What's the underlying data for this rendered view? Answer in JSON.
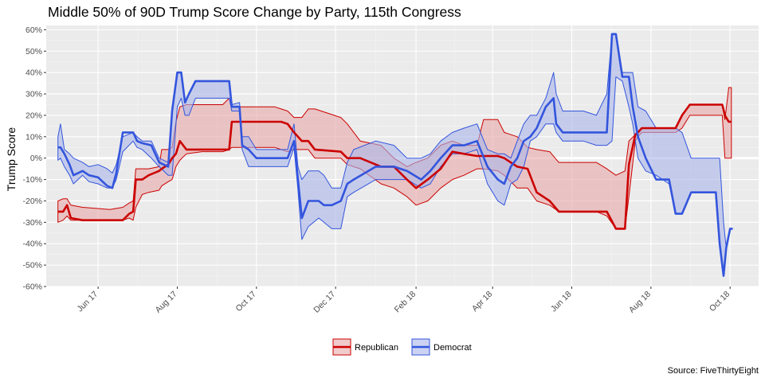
{
  "chart_data": {
    "type": "area",
    "title": "Middle 50% of 90D Trump Score Change by Party, 115th Congress",
    "xlabel": "",
    "ylabel": "Trump Score",
    "source": "Source: FiveThirtyEight",
    "y_range": [
      -60,
      62
    ],
    "y_ticks": [
      -60,
      -50,
      -40,
      -30,
      -20,
      -10,
      0,
      10,
      20,
      30,
      40,
      50,
      60
    ],
    "y_tick_labels": [
      "-60%",
      "-50%",
      "-40%",
      "-30%",
      "-20%",
      "-10%",
      "0%",
      "10%",
      "20%",
      "30%",
      "40%",
      "50%",
      "60%"
    ],
    "x_range": [
      "2017-04-22",
      "2018-10-23"
    ],
    "x_ticks": [
      {
        "date": "2017-06-01",
        "label": "Jun 17"
      },
      {
        "date": "2017-08-01",
        "label": "Aug 17"
      },
      {
        "date": "2017-10-01",
        "label": "Oct 17"
      },
      {
        "date": "2017-12-01",
        "label": "Dec 17"
      },
      {
        "date": "2018-02-01",
        "label": "Feb 18"
      },
      {
        "date": "2018-04-01",
        "label": "Apr 18"
      },
      {
        "date": "2018-06-01",
        "label": "Jun 18"
      },
      {
        "date": "2018-08-01",
        "label": "Aug 18"
      },
      {
        "date": "2018-10-01",
        "label": "Oct 18"
      }
    ],
    "grid": true,
    "legend_position": "bottom",
    "series": [
      {
        "name": "Republican",
        "color": "#cc0000",
        "fill": "#e8a8a8",
        "points": [
          [
            "2017-05-01",
            -20,
            -30,
            -25
          ],
          [
            "2017-05-05",
            -19,
            -29,
            -25
          ],
          [
            "2017-05-08",
            -19,
            -27,
            -22
          ],
          [
            "2017-05-11",
            -22,
            -29,
            -28
          ],
          [
            "2017-05-20",
            -23,
            -29,
            -29
          ],
          [
            "2017-06-10",
            -24,
            -29,
            -29
          ],
          [
            "2017-06-20",
            -23,
            -29,
            -29
          ],
          [
            "2017-06-25",
            -21,
            -28,
            -26
          ],
          [
            "2017-06-28",
            -20,
            -29,
            -25
          ],
          [
            "2017-06-30",
            -5,
            -23,
            -10
          ],
          [
            "2017-07-05",
            -5,
            -17,
            -10
          ],
          [
            "2017-07-10",
            -5,
            -16,
            -8
          ],
          [
            "2017-07-18",
            -4,
            -15,
            -6
          ],
          [
            "2017-07-20",
            4,
            -13,
            -5
          ],
          [
            "2017-07-25",
            4,
            -11,
            -3
          ],
          [
            "2017-07-28",
            5,
            -10,
            0
          ],
          [
            "2017-07-31",
            17,
            -4,
            2
          ],
          [
            "2017-08-03",
            24,
            -1,
            8
          ],
          [
            "2017-08-08",
            25,
            2,
            4
          ],
          [
            "2017-08-20",
            25,
            3,
            4
          ],
          [
            "2017-09-05",
            25,
            3,
            4
          ],
          [
            "2017-09-10",
            28,
            4,
            4
          ],
          [
            "2017-09-12",
            24,
            5,
            17
          ],
          [
            "2017-10-15",
            24,
            5,
            17
          ],
          [
            "2017-10-20",
            23,
            4,
            17
          ],
          [
            "2017-10-25",
            22,
            3,
            16
          ],
          [
            "2017-10-30",
            19,
            4,
            12
          ],
          [
            "2017-11-05",
            19,
            4,
            8
          ],
          [
            "2017-11-10",
            23,
            4,
            8
          ],
          [
            "2017-11-15",
            23,
            0,
            4
          ],
          [
            "2017-12-05",
            19,
            0,
            3
          ],
          [
            "2017-12-10",
            16,
            -3,
            0
          ],
          [
            "2017-12-20",
            8,
            -5,
            0
          ],
          [
            "2018-01-05",
            6,
            -12,
            -4
          ],
          [
            "2018-01-15",
            0,
            -14,
            -4
          ],
          [
            "2018-01-25",
            -4,
            -18,
            -10
          ],
          [
            "2018-02-01",
            -2,
            -22,
            -14
          ],
          [
            "2018-02-10",
            0,
            -20,
            -10
          ],
          [
            "2018-02-20",
            6,
            -14,
            -5
          ],
          [
            "2018-03-01",
            8,
            -10,
            3
          ],
          [
            "2018-03-10",
            6,
            -8,
            2
          ],
          [
            "2018-03-20",
            6,
            -5,
            1
          ],
          [
            "2018-03-25",
            18,
            -5,
            1
          ],
          [
            "2018-04-05",
            18,
            -6,
            1
          ],
          [
            "2018-04-10",
            12,
            -8,
            0
          ],
          [
            "2018-04-20",
            10,
            -14,
            -4
          ],
          [
            "2018-04-28",
            5,
            -14,
            -5
          ],
          [
            "2018-05-05",
            4,
            -20,
            -16
          ],
          [
            "2018-05-15",
            3,
            -22,
            -20
          ],
          [
            "2018-05-22",
            -2,
            -25,
            -25
          ],
          [
            "2018-06-20",
            -2,
            -25,
            -25
          ],
          [
            "2018-06-28",
            -5,
            -27,
            -25
          ],
          [
            "2018-07-05",
            -8,
            -33,
            -33
          ],
          [
            "2018-07-12",
            -6,
            -33,
            -33
          ],
          [
            "2018-07-15",
            8,
            -18,
            -3
          ],
          [
            "2018-07-20",
            11,
            8,
            11
          ],
          [
            "2018-07-22",
            12,
            10,
            12
          ],
          [
            "2018-07-25",
            14,
            12,
            14
          ],
          [
            "2018-08-20",
            14,
            12,
            14
          ],
          [
            "2018-08-25",
            20,
            14,
            20
          ],
          [
            "2018-08-31",
            25,
            20,
            25
          ],
          [
            "2018-09-25",
            25,
            20,
            25
          ],
          [
            "2018-09-27",
            18,
            0,
            20
          ],
          [
            "2018-09-30",
            33,
            0,
            17
          ],
          [
            "2018-10-02",
            33,
            0,
            17
          ]
        ]
      },
      {
        "name": "Democrat",
        "color": "#3355dd",
        "fill": "#aab6ea",
        "points": [
          [
            "2017-05-01",
            10,
            -1,
            5
          ],
          [
            "2017-05-03",
            16,
            0,
            5
          ],
          [
            "2017-05-06",
            4,
            -4,
            2
          ],
          [
            "2017-05-10",
            2,
            -8,
            -3
          ],
          [
            "2017-05-13",
            0,
            -12,
            -8
          ],
          [
            "2017-05-20",
            -2,
            -8,
            -6
          ],
          [
            "2017-05-25",
            -4,
            -11,
            -8
          ],
          [
            "2017-06-01",
            -3,
            -12,
            -9
          ],
          [
            "2017-06-08",
            -5,
            -14,
            -13
          ],
          [
            "2017-06-12",
            -7,
            -14,
            -14
          ],
          [
            "2017-06-15",
            -3,
            -10,
            -7
          ],
          [
            "2017-06-20",
            10,
            3,
            12
          ],
          [
            "2017-06-28",
            12,
            8,
            12
          ],
          [
            "2017-07-01",
            10,
            5,
            8
          ],
          [
            "2017-07-05",
            8,
            4,
            7
          ],
          [
            "2017-07-12",
            8,
            0,
            6
          ],
          [
            "2017-07-18",
            0,
            -4,
            -2
          ],
          [
            "2017-07-25",
            -2,
            -8,
            -4
          ],
          [
            "2017-07-28",
            24,
            -8,
            22
          ],
          [
            "2017-08-01",
            40,
            24,
            40
          ],
          [
            "2017-08-04",
            40,
            28,
            40
          ],
          [
            "2017-08-07",
            26,
            20,
            26
          ],
          [
            "2017-08-10",
            30,
            20,
            30
          ],
          [
            "2017-08-15",
            36,
            28,
            36
          ],
          [
            "2017-09-10",
            36,
            28,
            36
          ],
          [
            "2017-09-12",
            25,
            22,
            24
          ],
          [
            "2017-09-18",
            26,
            22,
            24
          ],
          [
            "2017-09-20",
            10,
            4,
            6
          ],
          [
            "2017-09-25",
            10,
            -4,
            4
          ],
          [
            "2017-10-01",
            4,
            -4,
            0
          ],
          [
            "2017-10-25",
            4,
            -4,
            0
          ],
          [
            "2017-10-30",
            16,
            5,
            8
          ],
          [
            "2017-11-02",
            -4,
            -15,
            -10
          ],
          [
            "2017-11-05",
            -10,
            -38,
            -28
          ],
          [
            "2017-11-10",
            -6,
            -32,
            -20
          ],
          [
            "2017-11-18",
            -6,
            -28,
            -20
          ],
          [
            "2017-11-22",
            -8,
            -30,
            -22
          ],
          [
            "2017-11-28",
            -14,
            -33,
            -22
          ],
          [
            "2017-12-05",
            -14,
            -33,
            -20
          ],
          [
            "2017-12-10",
            -2,
            -18,
            -12
          ],
          [
            "2017-12-15",
            4,
            -16,
            -10
          ],
          [
            "2018-01-01",
            8,
            -10,
            -4
          ],
          [
            "2018-01-15",
            6,
            -10,
            -4
          ],
          [
            "2018-01-25",
            0,
            -10,
            -6
          ],
          [
            "2018-02-05",
            0,
            -14,
            -10
          ],
          [
            "2018-02-12",
            2,
            -12,
            -6
          ],
          [
            "2018-02-20",
            8,
            -4,
            0
          ],
          [
            "2018-03-01",
            12,
            2,
            6
          ],
          [
            "2018-03-10",
            14,
            2,
            6
          ],
          [
            "2018-03-20",
            16,
            4,
            8
          ],
          [
            "2018-03-28",
            4,
            -12,
            -4
          ],
          [
            "2018-04-05",
            2,
            -20,
            -10
          ],
          [
            "2018-04-10",
            2,
            -22,
            -12
          ],
          [
            "2018-04-15",
            0,
            -12,
            -4
          ],
          [
            "2018-04-20",
            8,
            -10,
            0
          ],
          [
            "2018-04-25",
            16,
            -4,
            8
          ],
          [
            "2018-04-30",
            20,
            8,
            10
          ],
          [
            "2018-05-05",
            20,
            10,
            14
          ],
          [
            "2018-05-12",
            28,
            16,
            24
          ],
          [
            "2018-05-18",
            40,
            16,
            28
          ],
          [
            "2018-05-20",
            30,
            12,
            16
          ],
          [
            "2018-05-25",
            22,
            8,
            12
          ],
          [
            "2018-06-10",
            22,
            8,
            12
          ],
          [
            "2018-06-20",
            20,
            6,
            12
          ],
          [
            "2018-06-28",
            30,
            6,
            12
          ],
          [
            "2018-07-02",
            58,
            8,
            58
          ],
          [
            "2018-07-05",
            58,
            38,
            58
          ],
          [
            "2018-07-10",
            40,
            36,
            38
          ],
          [
            "2018-07-15",
            40,
            24,
            38
          ],
          [
            "2018-07-18",
            40,
            16,
            24
          ],
          [
            "2018-07-22",
            24,
            0,
            10
          ],
          [
            "2018-07-28",
            22,
            -6,
            0
          ],
          [
            "2018-08-05",
            14,
            -8,
            -10
          ],
          [
            "2018-08-15",
            14,
            -12,
            -10
          ],
          [
            "2018-08-20",
            14,
            -26,
            -26
          ],
          [
            "2018-08-25",
            12,
            -26,
            -26
          ],
          [
            "2018-09-01",
            0,
            -16,
            -16
          ],
          [
            "2018-09-20",
            0,
            -16,
            -16
          ],
          [
            "2018-09-23",
            0,
            -40,
            -40
          ],
          [
            "2018-09-26",
            -30,
            -55,
            -55
          ],
          [
            "2018-09-28",
            -42,
            -42,
            -42
          ],
          [
            "2018-10-01",
            -33,
            -33,
            -33
          ],
          [
            "2018-10-03",
            -33,
            -33,
            -33
          ]
        ]
      }
    ]
  }
}
